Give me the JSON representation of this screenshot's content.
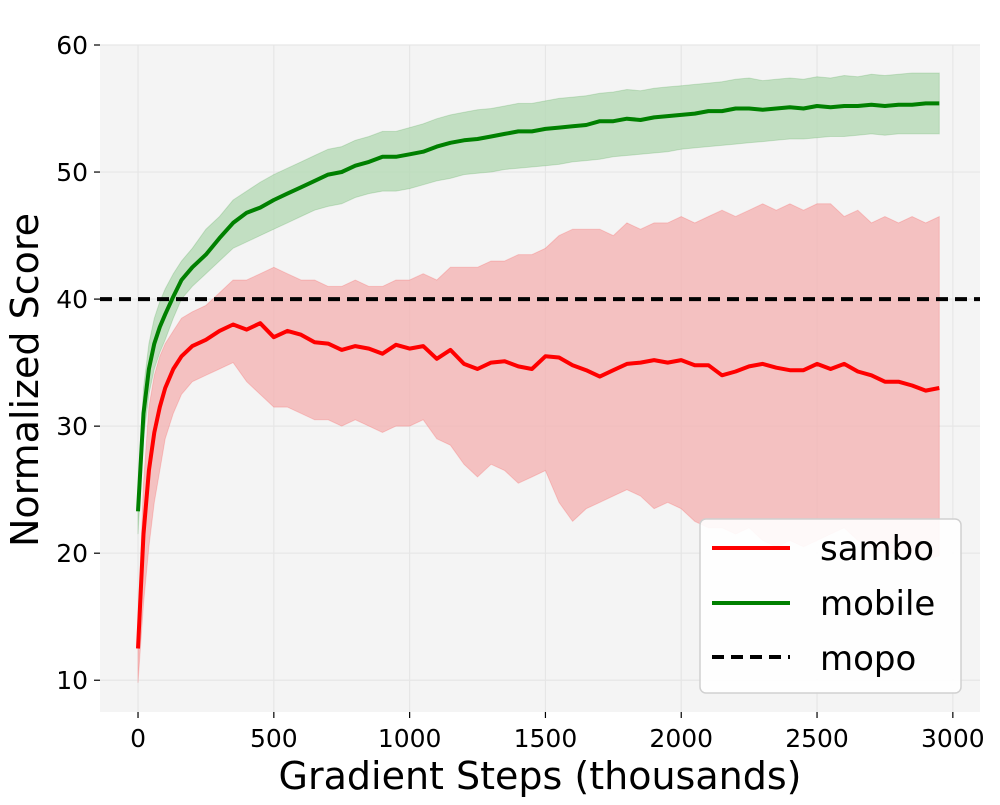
{
  "chart_data": {
    "type": "line",
    "title": "",
    "xlabel": "Gradient Steps (thousands)",
    "ylabel": "Normalized Score",
    "xlim": [
      -140,
      3100
    ],
    "ylim": [
      7.5,
      60
    ],
    "xticks": [
      0,
      500,
      1000,
      1500,
      2000,
      2500,
      3000
    ],
    "yticks": [
      10,
      20,
      30,
      40,
      50,
      60
    ],
    "grid": true,
    "legend_position": "lower-right",
    "background": "#f4f4f4",
    "series": [
      {
        "name": "sambo",
        "color": "#ff0000",
        "band_color": "#f4b0b0",
        "x": [
          0,
          20,
          40,
          60,
          80,
          100,
          130,
          160,
          200,
          250,
          300,
          350,
          400,
          450,
          500,
          550,
          600,
          650,
          700,
          750,
          800,
          850,
          900,
          950,
          1000,
          1050,
          1100,
          1150,
          1200,
          1250,
          1300,
          1350,
          1400,
          1450,
          1500,
          1550,
          1600,
          1650,
          1700,
          1750,
          1800,
          1850,
          1900,
          1950,
          2000,
          2050,
          2100,
          2150,
          2200,
          2250,
          2300,
          2350,
          2400,
          2450,
          2500,
          2550,
          2600,
          2650,
          2700,
          2750,
          2800,
          2850,
          2900,
          2950
        ],
        "mean": [
          12.5,
          21.5,
          26.5,
          29.5,
          31.5,
          33.0,
          34.5,
          35.5,
          36.3,
          36.8,
          37.5,
          38.0,
          37.6,
          38.1,
          37.0,
          37.5,
          37.2,
          36.6,
          36.5,
          36.0,
          36.3,
          36.1,
          35.7,
          36.4,
          36.1,
          36.3,
          35.3,
          36.0,
          34.9,
          34.5,
          35.0,
          35.1,
          34.7,
          34.5,
          35.5,
          35.4,
          34.8,
          34.4,
          33.9,
          34.4,
          34.9,
          35.0,
          35.2,
          35.0,
          35.2,
          34.8,
          34.8,
          34.0,
          34.3,
          34.7,
          34.9,
          34.6,
          34.4,
          34.4,
          34.9,
          34.5,
          34.9,
          34.3,
          34.0,
          33.5,
          33.5,
          33.2,
          32.8,
          33.0
        ],
        "lower": [
          9.8,
          16.0,
          20.5,
          24.0,
          26.5,
          29.0,
          31.0,
          32.5,
          33.5,
          34.0,
          34.5,
          35.0,
          33.5,
          32.5,
          31.5,
          31.5,
          31.0,
          30.5,
          30.5,
          30.0,
          30.5,
          30.0,
          29.5,
          30.0,
          30.0,
          30.5,
          29.0,
          28.5,
          27.0,
          26.0,
          27.0,
          26.5,
          25.5,
          26.0,
          26.5,
          24.0,
          22.5,
          23.5,
          24.0,
          24.5,
          25.0,
          24.5,
          23.5,
          24.0,
          23.5,
          22.5,
          22.0,
          22.0,
          21.5,
          22.0,
          21.0,
          20.5,
          21.0,
          20.5,
          21.0,
          21.5,
          22.0,
          21.0,
          20.5,
          20.0,
          20.0,
          20.0,
          19.5,
          19.8
        ],
        "upper": [
          14.5,
          25.5,
          31.5,
          34.0,
          35.5,
          36.5,
          37.5,
          38.5,
          39.0,
          39.5,
          40.5,
          41.5,
          41.5,
          42.0,
          42.5,
          42.0,
          41.5,
          41.5,
          41.0,
          41.0,
          41.5,
          41.0,
          41.0,
          41.5,
          41.5,
          42.0,
          41.5,
          42.5,
          42.5,
          42.5,
          43.0,
          43.0,
          43.5,
          43.5,
          44.0,
          45.0,
          45.5,
          45.5,
          45.5,
          45.0,
          46.0,
          45.5,
          46.0,
          46.0,
          46.5,
          46.0,
          46.5,
          47.0,
          46.5,
          47.0,
          47.5,
          47.0,
          47.5,
          47.0,
          47.5,
          47.5,
          46.5,
          47.0,
          46.0,
          46.5,
          46.0,
          46.5,
          46.0,
          46.5
        ]
      },
      {
        "name": "mobile",
        "color": "#008000",
        "band_color": "#b2d8b2",
        "x": [
          0,
          20,
          40,
          60,
          80,
          100,
          130,
          160,
          200,
          250,
          300,
          350,
          400,
          450,
          500,
          550,
          600,
          650,
          700,
          750,
          800,
          850,
          900,
          950,
          1000,
          1050,
          1100,
          1150,
          1200,
          1250,
          1300,
          1350,
          1400,
          1450,
          1500,
          1550,
          1600,
          1650,
          1700,
          1750,
          1800,
          1850,
          1900,
          1950,
          2000,
          2050,
          2100,
          2150,
          2200,
          2250,
          2300,
          2350,
          2400,
          2450,
          2500,
          2550,
          2600,
          2650,
          2700,
          2750,
          2800,
          2850,
          2900,
          2950
        ],
        "mean": [
          23.3,
          31.0,
          34.5,
          36.5,
          37.8,
          38.8,
          40.2,
          41.5,
          42.5,
          43.5,
          44.8,
          46.0,
          46.8,
          47.2,
          47.8,
          48.3,
          48.8,
          49.3,
          49.8,
          50.0,
          50.5,
          50.8,
          51.2,
          51.2,
          51.4,
          51.6,
          52.0,
          52.3,
          52.5,
          52.6,
          52.8,
          53.0,
          53.2,
          53.2,
          53.4,
          53.5,
          53.6,
          53.7,
          54.0,
          54.0,
          54.2,
          54.1,
          54.3,
          54.4,
          54.5,
          54.6,
          54.8,
          54.8,
          55.0,
          55.0,
          54.9,
          55.0,
          55.1,
          55.0,
          55.2,
          55.1,
          55.2,
          55.2,
          55.3,
          55.2,
          55.3,
          55.3,
          55.4,
          55.4
        ],
        "lower": [
          21.5,
          29.0,
          32.5,
          34.5,
          35.8,
          36.8,
          38.5,
          40.0,
          41.0,
          42.0,
          43.0,
          44.0,
          44.5,
          45.0,
          45.5,
          46.0,
          46.5,
          47.0,
          47.3,
          47.5,
          48.0,
          48.3,
          48.5,
          48.5,
          48.7,
          49.0,
          49.3,
          49.5,
          49.8,
          49.9,
          50.0,
          50.2,
          50.3,
          50.4,
          50.5,
          50.6,
          50.8,
          50.9,
          51.0,
          51.2,
          51.3,
          51.4,
          51.5,
          51.6,
          51.8,
          51.9,
          52.0,
          52.1,
          52.2,
          52.3,
          52.4,
          52.5,
          52.6,
          52.6,
          52.7,
          52.8,
          52.8,
          52.9,
          53.0,
          52.9,
          53.0,
          53.0,
          53.0,
          53.0
        ],
        "upper": [
          25.0,
          33.0,
          36.5,
          38.5,
          39.8,
          40.8,
          42.0,
          43.0,
          44.0,
          45.5,
          46.5,
          47.8,
          48.5,
          49.2,
          49.8,
          50.3,
          50.8,
          51.3,
          51.8,
          52.0,
          52.5,
          52.8,
          53.2,
          53.2,
          53.5,
          53.8,
          54.2,
          54.5,
          54.7,
          54.9,
          55.0,
          55.2,
          55.4,
          55.4,
          55.6,
          55.8,
          55.9,
          56.0,
          56.2,
          56.3,
          56.5,
          56.4,
          56.6,
          56.7,
          56.8,
          56.9,
          57.0,
          57.1,
          57.3,
          57.4,
          57.2,
          57.3,
          57.4,
          57.3,
          57.5,
          57.4,
          57.6,
          57.5,
          57.7,
          57.6,
          57.7,
          57.8,
          57.8,
          57.8
        ]
      },
      {
        "name": "mopo",
        "color": "#000000",
        "style": "dashed",
        "value": 40
      }
    ]
  }
}
